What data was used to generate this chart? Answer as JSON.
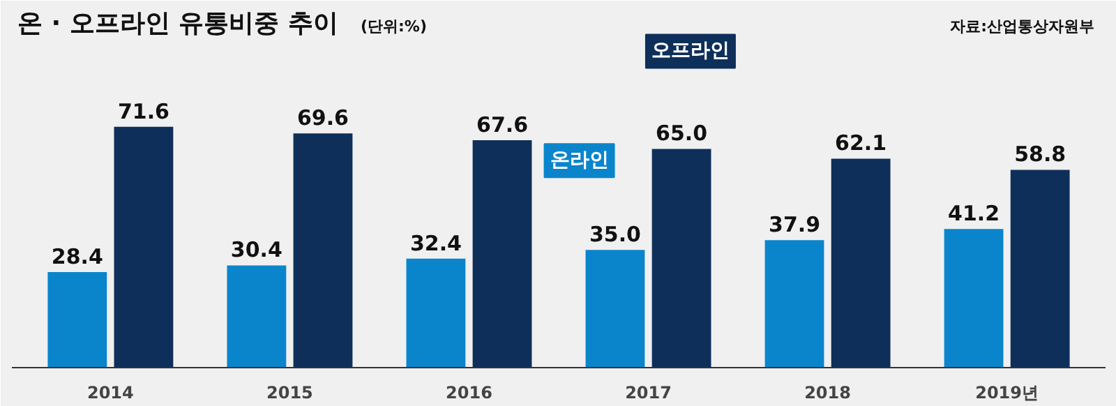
{
  "chart_data": {
    "type": "bar",
    "title": "온 · 오프라인 유통비중 추이",
    "subtitle": "(단위:%)",
    "annotations": [
      "자료:산업통상자원부"
    ],
    "categories": [
      "2014",
      "2015",
      "2016",
      "2017",
      "2018",
      "2019년"
    ],
    "series": [
      {
        "name": "온라인",
        "color": "#0a85cc",
        "values": [
          28.4,
          30.4,
          32.4,
          35.0,
          37.9,
          41.2
        ],
        "value_labels": [
          "28.4",
          "30.4",
          "32.4",
          "35.0",
          "37.9",
          "41.2"
        ]
      },
      {
        "name": "오프라인",
        "color": "#0e2f5a",
        "values": [
          71.6,
          69.6,
          67.6,
          65.0,
          62.1,
          58.8
        ],
        "value_labels": [
          "71.6",
          "69.6",
          "67.6",
          "65.0",
          "62.1",
          "58.8"
        ]
      }
    ],
    "grid": false,
    "legend": false
  }
}
